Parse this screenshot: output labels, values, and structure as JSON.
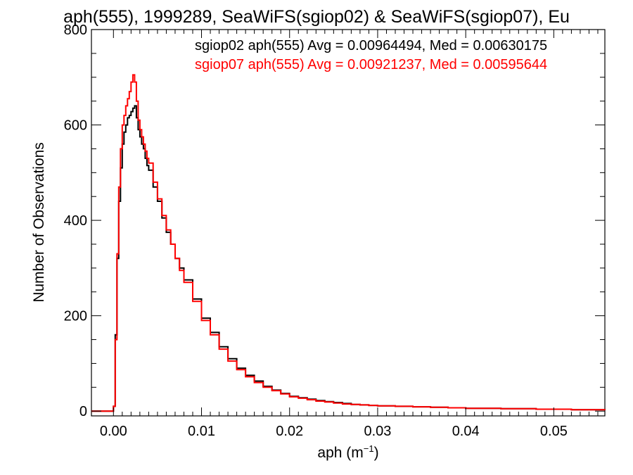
{
  "chart_data": {
    "type": "line",
    "title": "aph(555), 1999289, SeaWiFS(sgiop02) & SeaWiFS(sgiop07), Eu",
    "xlabel": "aph (m",
    "xlabel_sup": "−1",
    "xlabel_close": ")",
    "ylabel": "Number of Observations",
    "xlim": [
      -0.0025,
      0.0558
    ],
    "ylim": [
      -10,
      800
    ],
    "grid": false,
    "x_ticks": [
      0.0,
      0.01,
      0.02,
      0.03,
      0.04,
      0.05
    ],
    "x_tick_labels": [
      "0.00",
      "0.01",
      "0.02",
      "0.03",
      "0.04",
      "0.05"
    ],
    "y_ticks": [
      0,
      200,
      400,
      600,
      800
    ],
    "y_tick_labels": [
      "0",
      "200",
      "400",
      "600",
      "800"
    ],
    "legend_position": "top-right",
    "annotations": [
      {
        "text": "sgiop02 aph(555) Avg = 0.00964494, Med = 0.00630175",
        "color": "#000000"
      },
      {
        "text": "sgiop07 aph(555) Avg = 0.00921237, Med = 0.00595644",
        "color": "#ff0000"
      }
    ],
    "series": [
      {
        "name": "sgiop02",
        "color": "#000000",
        "x": [
          -0.0025,
          0.0,
          0.0002,
          0.0004,
          0.0006,
          0.0008,
          0.001,
          0.0012,
          0.0014,
          0.0016,
          0.0018,
          0.002,
          0.0022,
          0.0024,
          0.0026,
          0.0028,
          0.003,
          0.0032,
          0.0034,
          0.0036,
          0.0038,
          0.004,
          0.0045,
          0.005,
          0.0055,
          0.006,
          0.0065,
          0.007,
          0.0075,
          0.008,
          0.009,
          0.01,
          0.011,
          0.012,
          0.013,
          0.014,
          0.015,
          0.016,
          0.017,
          0.018,
          0.019,
          0.02,
          0.021,
          0.022,
          0.023,
          0.024,
          0.025,
          0.026,
          0.027,
          0.028,
          0.029,
          0.03,
          0.032,
          0.034,
          0.036,
          0.038,
          0.04,
          0.042,
          0.044,
          0.046,
          0.048,
          0.05,
          0.052,
          0.054,
          0.0558
        ],
        "values": [
          0,
          10,
          160,
          320,
          440,
          510,
          560,
          585,
          600,
          615,
          620,
          628,
          635,
          640,
          615,
          590,
          575,
          560,
          550,
          530,
          515,
          505,
          470,
          440,
          405,
          375,
          350,
          320,
          300,
          275,
          235,
          195,
          165,
          135,
          110,
          90,
          75,
          63,
          52,
          44,
          37,
          31,
          28,
          25,
          22,
          20,
          18,
          16,
          14,
          13,
          12,
          11,
          10,
          9,
          8,
          7,
          6,
          6,
          5,
          5,
          4,
          4,
          3,
          3,
          2
        ]
      },
      {
        "name": "sgiop07",
        "color": "#ff0000",
        "x": [
          -0.0025,
          0.0,
          0.0002,
          0.0004,
          0.0006,
          0.0008,
          0.001,
          0.0012,
          0.0014,
          0.0016,
          0.0018,
          0.002,
          0.0022,
          0.0024,
          0.0026,
          0.0028,
          0.003,
          0.0032,
          0.0034,
          0.0036,
          0.0038,
          0.004,
          0.0045,
          0.005,
          0.0055,
          0.006,
          0.0065,
          0.007,
          0.0075,
          0.008,
          0.009,
          0.01,
          0.011,
          0.012,
          0.013,
          0.014,
          0.015,
          0.016,
          0.017,
          0.018,
          0.019,
          0.02,
          0.021,
          0.022,
          0.023,
          0.024,
          0.025,
          0.026,
          0.027,
          0.028,
          0.029,
          0.03,
          0.032,
          0.034,
          0.036,
          0.038,
          0.04,
          0.042,
          0.044,
          0.046,
          0.048,
          0.05,
          0.052,
          0.054,
          0.0558
        ],
        "values": [
          0,
          10,
          150,
          330,
          470,
          550,
          600,
          620,
          640,
          655,
          670,
          690,
          705,
          690,
          650,
          610,
          590,
          575,
          560,
          545,
          530,
          520,
          480,
          445,
          410,
          380,
          350,
          320,
          295,
          270,
          230,
          190,
          160,
          130,
          105,
          87,
          72,
          60,
          50,
          43,
          36,
          30,
          27,
          24,
          21,
          19,
          17,
          15,
          14,
          13,
          12,
          11,
          10,
          9,
          8,
          7,
          6,
          6,
          5,
          5,
          4,
          4,
          3,
          3,
          2
        ]
      }
    ]
  }
}
